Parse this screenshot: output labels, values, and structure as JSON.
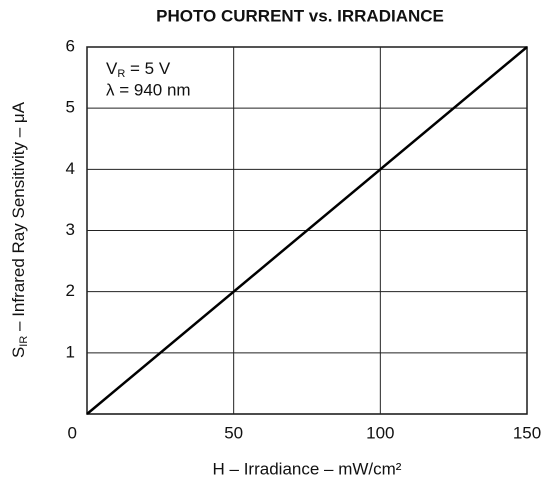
{
  "chart_data": {
    "type": "line",
    "title": "PHOTO CURRENT vs. IRRADIANCE",
    "xlabel": "H – Irradiance – mW/cm²",
    "ylabel": [
      "S",
      "IR",
      " – Infrared Ray Sensitivity – μA"
    ],
    "annotations": [
      [
        "V",
        "R",
        " = 5 V"
      ],
      [
        "λ = 940 nm"
      ]
    ],
    "x": [
      0,
      150
    ],
    "series": [
      {
        "color": "#000000",
        "values": [
          0,
          6
        ]
      }
    ],
    "xlim": [
      0,
      150
    ],
    "xticks": [
      0,
      50,
      100,
      150
    ],
    "ylim": [
      0,
      6
    ],
    "yticks": [
      1,
      2,
      3,
      4,
      5,
      6
    ],
    "grid": true
  }
}
